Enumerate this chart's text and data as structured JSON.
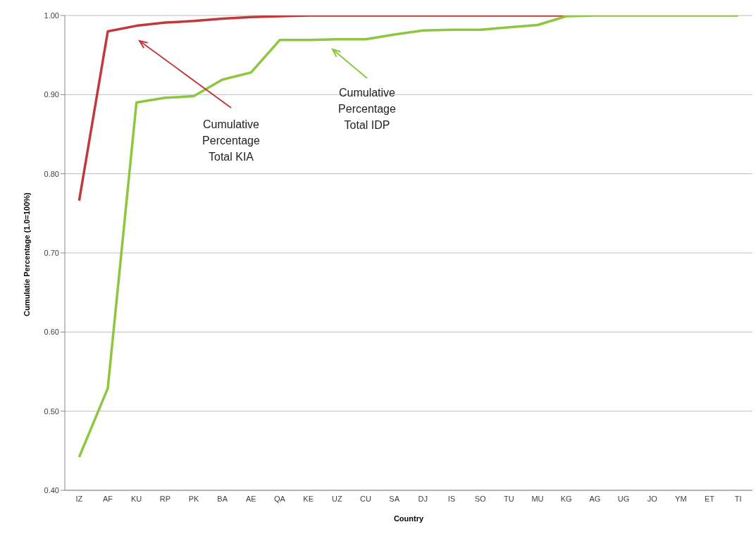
{
  "chart_data": {
    "type": "line",
    "xlabel": "Country",
    "ylabel": "Cumulatie Percentage (1.0=100%)",
    "categories": [
      "IZ",
      "AF",
      "KU",
      "RP",
      "PK",
      "BA",
      "AE",
      "QA",
      "KE",
      "UZ",
      "CU",
      "SA",
      "DJ",
      "IS",
      "SO",
      "TU",
      "MU",
      "KG",
      "AG",
      "UG",
      "JO",
      "YM",
      "ET",
      "TI"
    ],
    "series": [
      {
        "color": "#c0393b",
        "values": [
          0.766,
          0.98,
          0.987,
          0.991,
          0.993,
          0.996,
          0.998,
          0.999,
          1.0,
          1.0,
          1.0,
          1.0,
          1.0,
          1.0,
          1.0,
          1.0,
          1.0,
          1.0,
          null,
          null,
          null,
          null,
          null,
          null
        ]
      },
      {
        "color": "#8dc63f",
        "values": [
          0.442,
          0.529,
          0.89,
          0.896,
          0.898,
          0.919,
          0.928,
          0.969,
          0.969,
          0.97,
          0.97,
          0.976,
          0.981,
          0.982,
          0.982,
          0.985,
          0.988,
          0.999,
          1.0,
          1.0,
          1.0,
          1.0,
          1.0,
          1.0
        ]
      }
    ],
    "ylim": [
      0.4,
      1.0
    ],
    "yticks": [
      {
        "value": 0.4,
        "label": "0.40"
      },
      {
        "value": 0.5,
        "label": "0.50"
      },
      {
        "value": 0.6,
        "label": "0.60"
      },
      {
        "value": 0.7,
        "label": "0.70"
      },
      {
        "value": 0.8,
        "label": "0.80"
      },
      {
        "value": 0.9,
        "label": "0.90"
      },
      {
        "value": 1.0,
        "label": "1.00"
      }
    ],
    "grid": "y",
    "legend": false,
    "marker": "none",
    "line_style": "solid",
    "annotations": [
      "Cumulative Percentage Total KIA",
      "Cumulative Percentage Total IDP"
    ]
  }
}
